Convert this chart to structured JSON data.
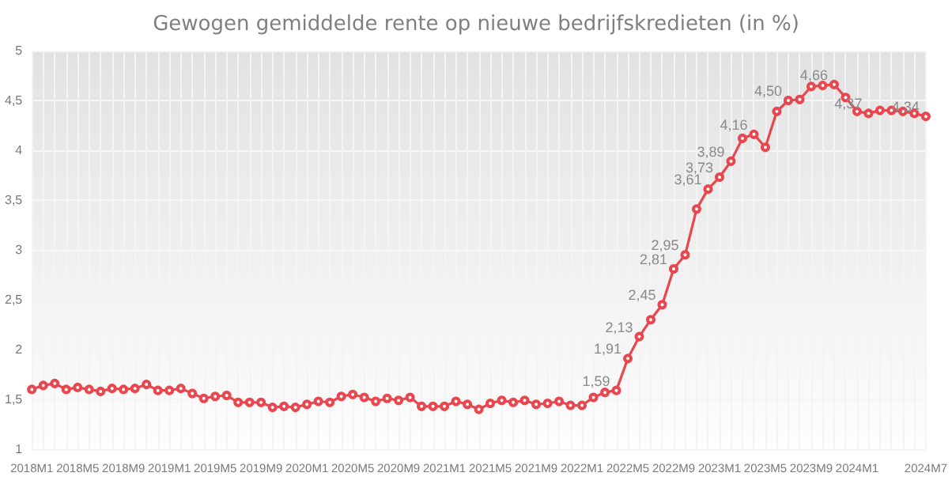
{
  "chart_data": {
    "type": "line",
    "title": "Gewogen gemiddelde rente op nieuwe bedrijfskredieten (in %)",
    "categories": [
      "2018M1",
      null,
      null,
      null,
      "2018M5",
      null,
      null,
      null,
      "2018M9",
      null,
      null,
      null,
      "2019M1",
      null,
      null,
      null,
      "2019M5",
      null,
      null,
      null,
      "2019M9",
      null,
      null,
      null,
      "2020M1",
      null,
      null,
      null,
      "2020M5",
      null,
      null,
      null,
      "2020M9",
      null,
      null,
      null,
      "2021M1",
      null,
      null,
      null,
      "2021M5",
      null,
      null,
      null,
      "2021M9",
      null,
      null,
      null,
      "2022M1",
      null,
      null,
      null,
      "2022M5",
      null,
      null,
      null,
      "2022M9",
      null,
      null,
      null,
      "2023M1",
      null,
      null,
      null,
      "2023M5",
      null,
      null,
      null,
      "2023M9",
      null,
      null,
      null,
      "2024M1",
      null,
      null,
      null,
      null,
      null,
      "2024M7"
    ],
    "series": [
      {
        "color": "#e8474f",
        "values": [
          1.6,
          1.64,
          1.66,
          1.6,
          1.62,
          1.6,
          1.58,
          1.61,
          1.6,
          1.61,
          1.65,
          1.59,
          1.59,
          1.61,
          1.56,
          1.51,
          1.53,
          1.54,
          1.47,
          1.47,
          1.47,
          1.42,
          1.43,
          1.42,
          1.45,
          1.48,
          1.47,
          1.53,
          1.55,
          1.52,
          1.48,
          1.51,
          1.49,
          1.52,
          1.43,
          1.43,
          1.43,
          1.48,
          1.45,
          1.4,
          1.46,
          1.49,
          1.47,
          1.49,
          1.45,
          1.46,
          1.48,
          1.44,
          1.44,
          1.52,
          1.57,
          1.59,
          1.91,
          2.13,
          2.3,
          2.45,
          2.81,
          2.95,
          3.41,
          3.61,
          3.73,
          3.89,
          4.12,
          4.16,
          4.03,
          4.39,
          4.5,
          4.51,
          4.64,
          4.65,
          4.66,
          4.53,
          4.39,
          4.37,
          4.4,
          4.4,
          4.39,
          4.37,
          4.34
        ],
        "value_labels": [
          null,
          null,
          null,
          null,
          null,
          null,
          null,
          null,
          null,
          null,
          null,
          null,
          null,
          null,
          null,
          null,
          null,
          null,
          null,
          null,
          null,
          null,
          null,
          null,
          null,
          null,
          null,
          null,
          null,
          null,
          null,
          null,
          null,
          null,
          null,
          null,
          null,
          null,
          null,
          null,
          null,
          null,
          null,
          null,
          null,
          null,
          null,
          null,
          null,
          null,
          null,
          "1,59",
          "1,91",
          "2,13",
          null,
          "2,45",
          "2,81",
          "2,95",
          null,
          "3,61",
          "3,73",
          "3,89",
          null,
          "4,16",
          null,
          null,
          "4,50",
          null,
          null,
          null,
          "4,66",
          null,
          null,
          "4,37",
          null,
          null,
          null,
          null,
          "4,34"
        ]
      }
    ],
    "ylim": [
      1,
      5
    ],
    "yticks": [
      1,
      {
        "value": 1.5,
        "label": "1,5"
      },
      2,
      {
        "value": 2.5,
        "label": "2,5"
      },
      3,
      {
        "value": 3.5,
        "label": "3,5"
      },
      4,
      {
        "value": 4.5,
        "label": "4,5"
      },
      5
    ],
    "grid": true,
    "marker": "circle",
    "line_style": "solid"
  }
}
